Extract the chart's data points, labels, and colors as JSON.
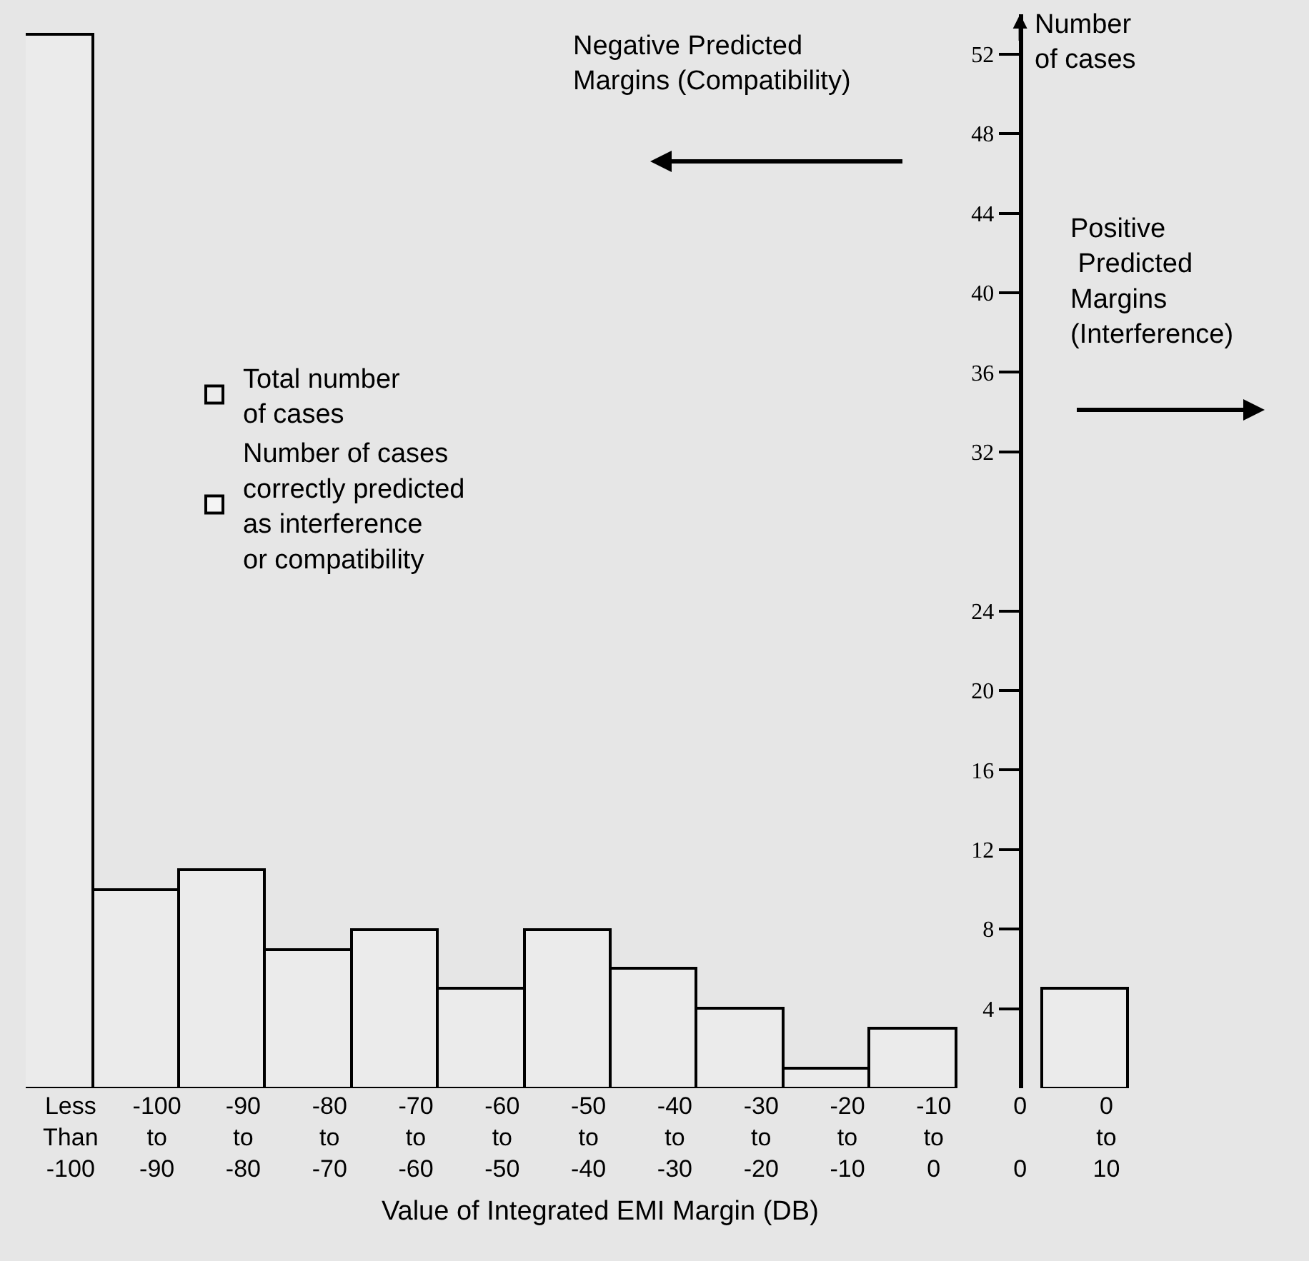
{
  "chart_data": {
    "type": "bar",
    "xlabel": "Value of Integrated EMI Margin (DB)",
    "ylabel": "Number\nof cases",
    "categories": [
      "Less\nThan\n-100",
      "-100\nto\n-90",
      "-90\nto\n-80",
      "-80\nto\n-70",
      "-70\nto\n-60",
      "-60\nto\n-50",
      "-50\nto\n-40",
      "-40\nto\n-30",
      "-30\nto\n-20",
      "-20\nto\n-10",
      "-10\nto\n0",
      "0\n\n0",
      "0\nto\n10"
    ],
    "series": [
      {
        "name": "Total number\nof cases",
        "color": "#ebebeb",
        "values": [
          53,
          10,
          11,
          7,
          8,
          5,
          8,
          6,
          4,
          1,
          3,
          null,
          5
        ]
      },
      {
        "name": "Number of cases\ncorrectly predicted\nas interference\nor compatibility",
        "color": "#f4f4f4",
        "values": [
          null,
          null,
          null,
          null,
          null,
          null,
          null,
          null,
          null,
          null,
          null,
          null,
          null
        ]
      }
    ],
    "ylim": [
      0,
      54
    ],
    "yticks": [
      4,
      8,
      12,
      16,
      20,
      24,
      32,
      36,
      40,
      44,
      48,
      52
    ],
    "annotations": [
      "Negative Predicted\nMargins (Compatibility)",
      "Positive\n Predicted\nMargins\n(Interference)"
    ],
    "legend": "left",
    "grid": false
  }
}
